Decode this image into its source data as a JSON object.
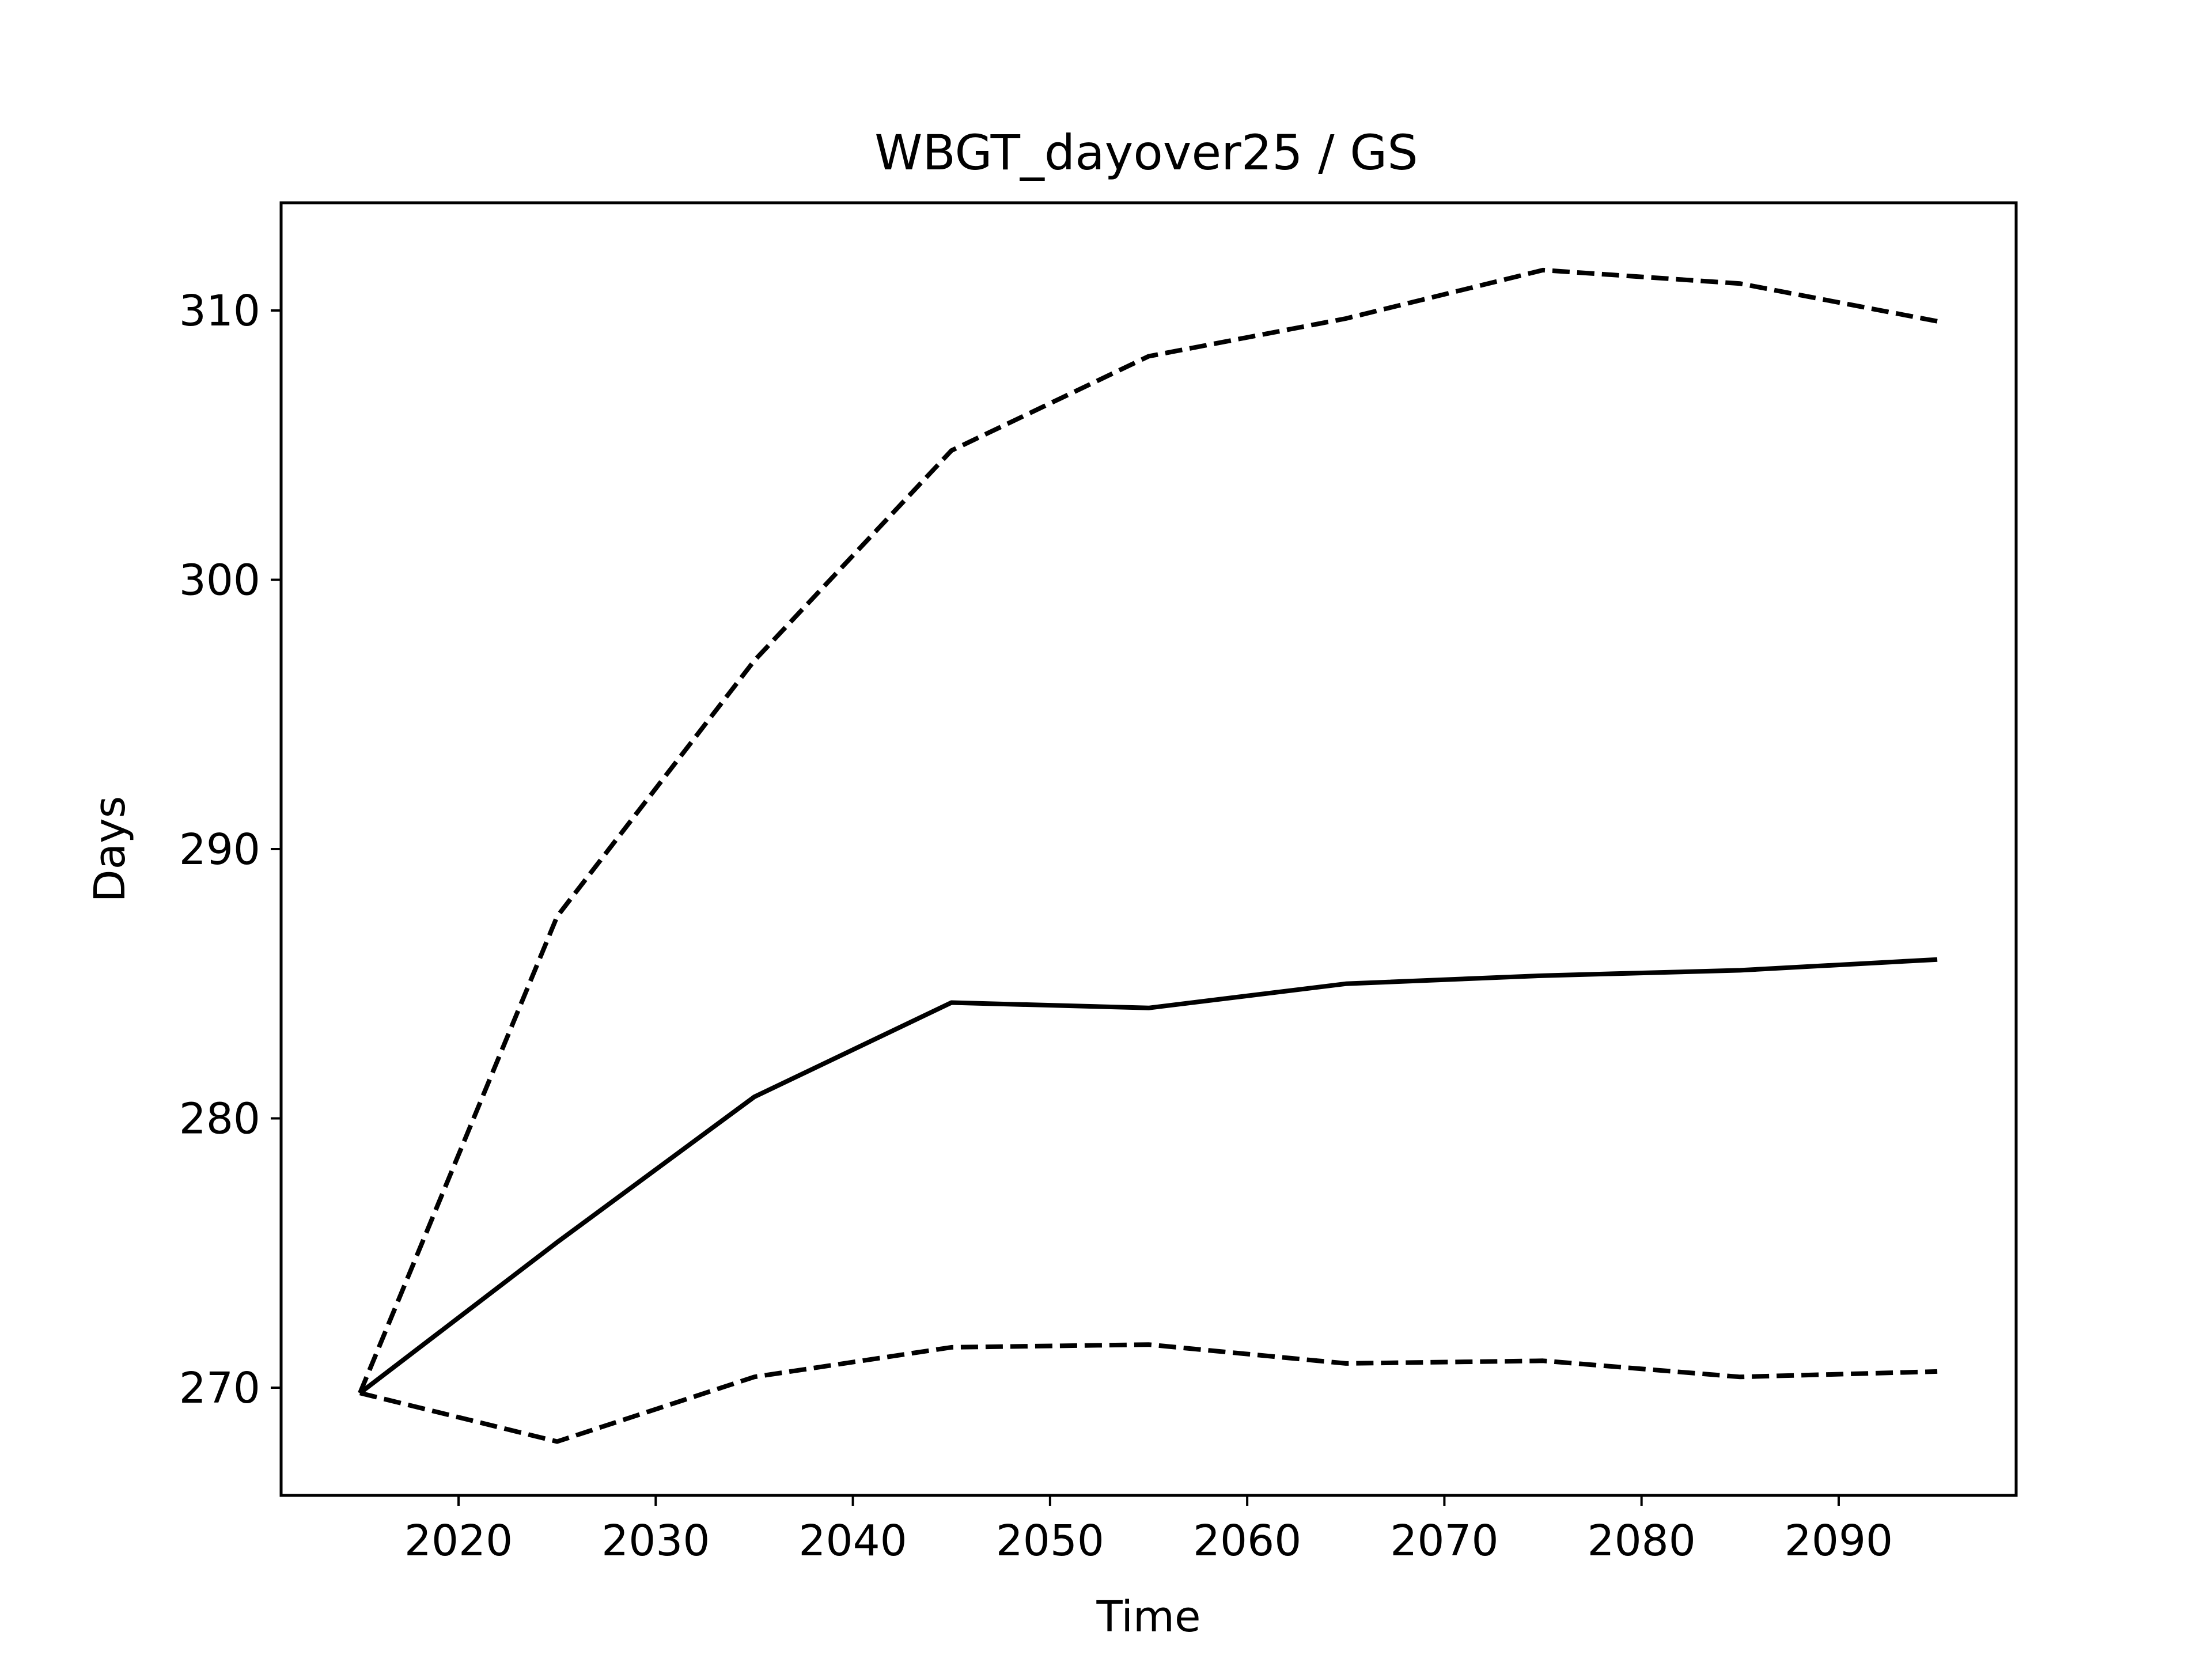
{
  "chart_data": {
    "type": "line",
    "title": "WBGT_dayover25 / GS",
    "xlabel": "Time",
    "ylabel": "Days",
    "xlim": [
      2011,
      2099
    ],
    "ylim": [
      266,
      314
    ],
    "xticks": [
      2020,
      2030,
      2040,
      2050,
      2060,
      2070,
      2080,
      2090
    ],
    "yticks": [
      270,
      280,
      290,
      300,
      310
    ],
    "grid": false,
    "x": [
      2015,
      2025,
      2035,
      2045,
      2055,
      2065,
      2075,
      2085,
      2095
    ],
    "series": [
      {
        "style": "dashed",
        "color": "#000000",
        "values": [
          269.8,
          287.5,
          297.0,
          304.8,
          308.3,
          309.7,
          311.5,
          311.0,
          309.6
        ]
      },
      {
        "style": "solid",
        "color": "#000000",
        "values": [
          269.8,
          275.4,
          280.8,
          284.3,
          284.1,
          285.0,
          285.3,
          285.5,
          285.9
        ]
      },
      {
        "style": "dashed",
        "color": "#000000",
        "values": [
          269.8,
          268.0,
          270.4,
          271.5,
          271.6,
          270.9,
          271.0,
          270.4,
          270.6
        ]
      }
    ]
  }
}
